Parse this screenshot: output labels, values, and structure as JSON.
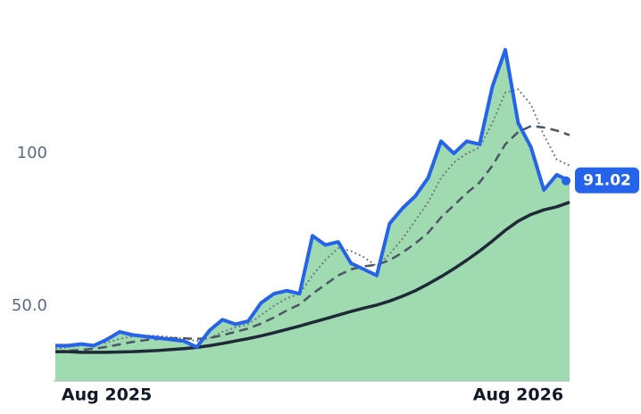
{
  "chart_data": {
    "type": "line",
    "categories": [
      null,
      null,
      null,
      null,
      "Aug 2025",
      null,
      null,
      null,
      null,
      null,
      null,
      null,
      null,
      null,
      null,
      null,
      null,
      null,
      null,
      null,
      null,
      null,
      null,
      null,
      null,
      null,
      null,
      null,
      null,
      null,
      null,
      null,
      null,
      null,
      null,
      null,
      "Aug 2026",
      null,
      null,
      null,
      null
    ],
    "ylim": [
      25.4,
      138.6
    ],
    "yticks": [
      {
        "value": 50,
        "label": "50.0"
      },
      100
    ],
    "area_color": "#8fd4a3",
    "series": [
      {
        "color": "#2563eb",
        "style": "solid",
        "width": 4,
        "values": [
          37,
          37,
          37.5,
          37,
          39,
          41.5,
          40.5,
          40,
          39.5,
          39,
          38.5,
          36.5,
          42,
          45.5,
          44,
          45,
          51,
          54,
          55,
          54,
          73,
          70,
          71,
          64,
          62,
          60,
          77,
          82,
          86,
          92,
          104,
          100,
          104,
          103,
          122,
          134,
          110,
          102,
          88,
          93,
          91.02
        ]
      },
      {
        "color": "#1f2937",
        "style": "solid",
        "width": 3.5,
        "values": [
          35,
          35,
          34.8,
          34.8,
          34.8,
          34.9,
          35,
          35.2,
          35.4,
          35.7,
          36,
          36.4,
          37,
          37.7,
          38.5,
          39.3,
          40.2,
          41.2,
          42.3,
          43.4,
          44.6,
          45.8,
          47,
          48.2,
          49.3,
          50.3,
          51.6,
          53.2,
          55,
          57.2,
          59.6,
          62.2,
          65,
          68,
          71.3,
          74.8,
          77.8,
          80,
          81.5,
          82.5,
          84
        ]
      },
      {
        "color": "#4b5563",
        "style": "dashed",
        "width": 2.5,
        "values": [
          35,
          35.3,
          35.6,
          36,
          36.6,
          37.4,
          38.2,
          38.8,
          39.2,
          39.4,
          39.4,
          39.2,
          39.5,
          40.4,
          41.5,
          42.6,
          44.2,
          46.2,
          48.5,
          50.5,
          54,
          57,
          60,
          62,
          63,
          63.5,
          65,
          67.5,
          70.5,
          74,
          79,
          83,
          87,
          90.5,
          96,
          103,
          107,
          109,
          108.5,
          107.5,
          106
        ]
      },
      {
        "color": "#6b7280",
        "style": "dotted",
        "width": 1.8,
        "values": [
          36,
          36.5,
          37,
          37.3,
          38,
          39.2,
          40,
          40.3,
          40.2,
          39.8,
          39.3,
          38.5,
          39.5,
          41.5,
          43,
          44,
          47,
          50,
          52.5,
          54,
          60,
          65,
          69,
          68,
          66,
          63,
          67,
          72,
          78,
          84,
          92,
          97,
          100,
          102,
          110,
          120,
          121,
          116,
          106,
          98,
          96
        ]
      }
    ]
  }
}
